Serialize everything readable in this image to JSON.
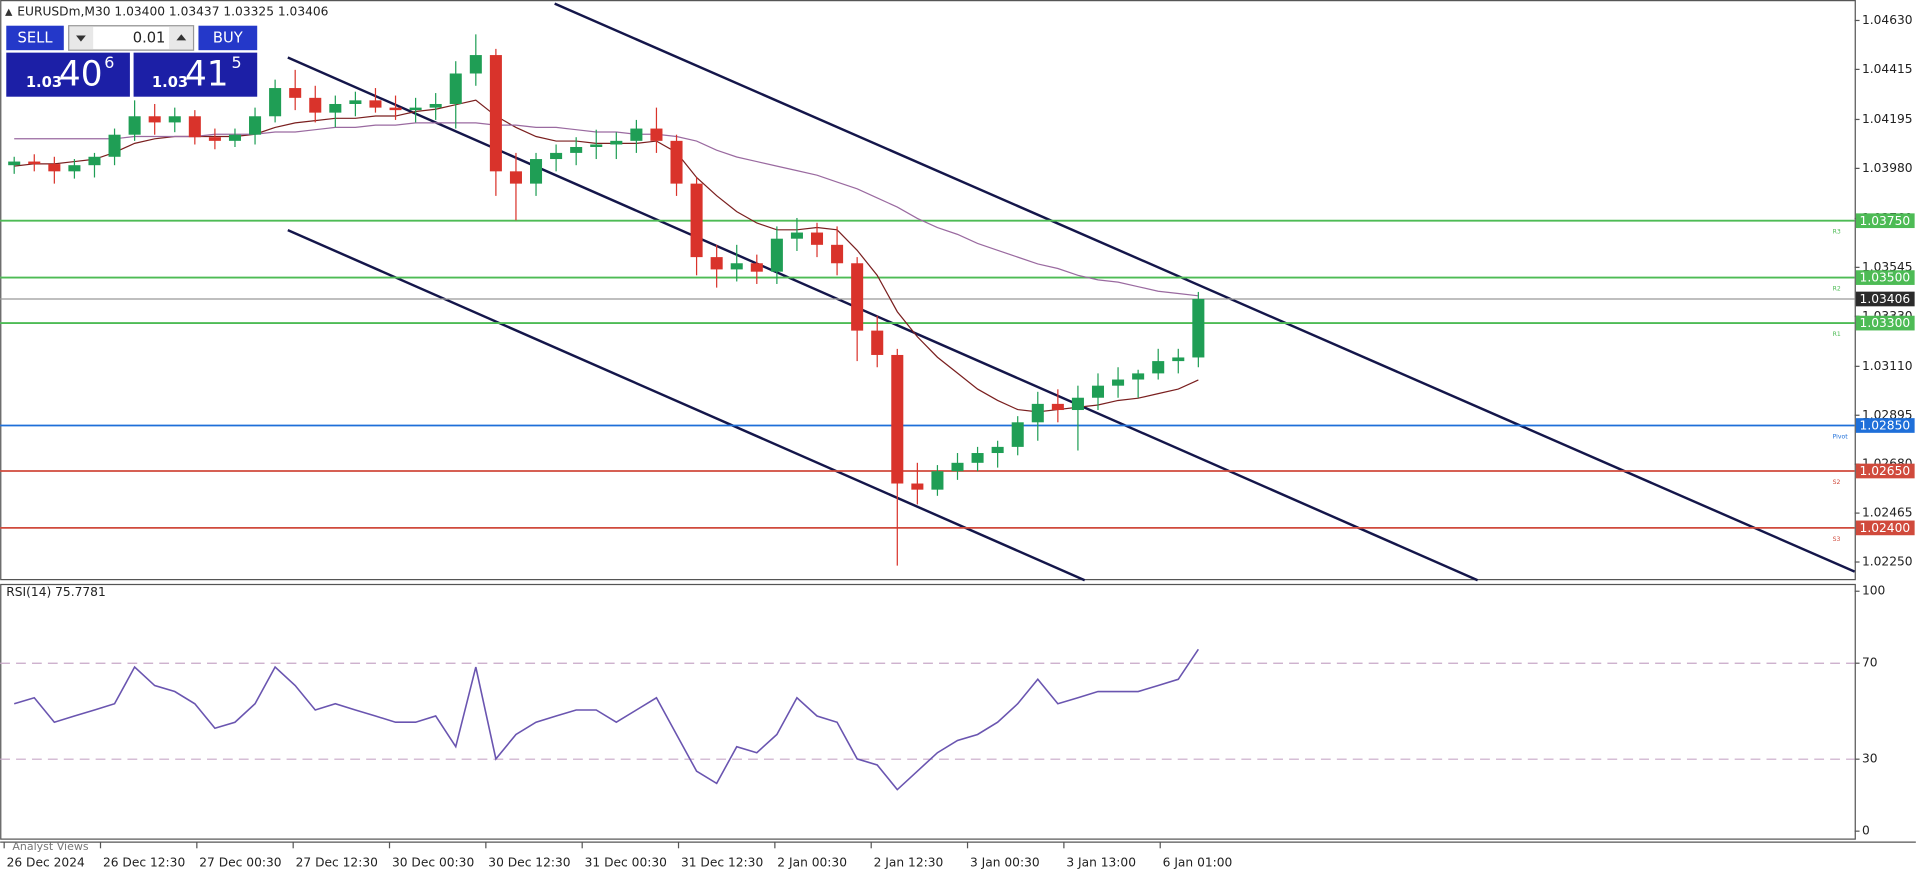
{
  "chart_data": [
    {
      "type": "candlestick",
      "header": "EURUSDm,M30 1.03400 1.03437 1.03325 1.03406",
      "xlim": [
        -1,
        461
      ],
      "ylim": [
        1.0217,
        1.0472
      ],
      "bar_span": 5,
      "xticks": [
        {
          "value": 0,
          "label": "26 Dec 2024"
        },
        {
          "value": 24,
          "label": "26 Dec 12:30"
        },
        {
          "value": 48,
          "label": "27 Dec 00:30"
        },
        {
          "value": 72,
          "label": "27 Dec 12:30"
        },
        {
          "value": 96,
          "label": "30 Dec 00:30"
        },
        {
          "value": 120,
          "label": "30 Dec 12:30"
        },
        {
          "value": 144,
          "label": "31 Dec 00:30"
        },
        {
          "value": 168,
          "label": "31 Dec 12:30"
        },
        {
          "value": 192,
          "label": "2 Jan 00:30"
        },
        {
          "value": 216,
          "label": "2 Jan 12:30"
        },
        {
          "value": 240,
          "label": "3 Jan 00:30"
        },
        {
          "value": 264,
          "label": "3 Jan 13:00"
        },
        {
          "value": 288,
          "label": "6 Jan 01:00"
        }
      ],
      "yticks": [
        {
          "value": 1.0463,
          "label": "1.04630"
        },
        {
          "value": 1.04415,
          "label": "1.04415"
        },
        {
          "value": 1.04195,
          "label": "1.04195"
        },
        {
          "value": 1.0398,
          "label": "1.03980"
        },
        {
          "value": 1.0376,
          "label": "1.03760"
        },
        {
          "value": 1.03545,
          "label": "1.03545"
        },
        {
          "value": 1.0333,
          "label": "1.03330"
        },
        {
          "value": 1.0311,
          "label": "1.03110"
        },
        {
          "value": 1.02895,
          "label": "1.02895"
        },
        {
          "value": 1.0268,
          "label": "1.02680"
        },
        {
          "value": 1.02465,
          "label": "1.02465"
        },
        {
          "value": 1.0225,
          "label": "1.02250"
        }
      ],
      "up_color": "#1f9e55",
      "down_color": "#d9332b",
      "candles": {
        "x": [
          0,
          5,
          10,
          15,
          20,
          25,
          30,
          35,
          40,
          45,
          50,
          55,
          60,
          65,
          70,
          75,
          80,
          85,
          90,
          95,
          100,
          105,
          110,
          115,
          120,
          125,
          130,
          135,
          140,
          145,
          150,
          155,
          160,
          165,
          170,
          175,
          180,
          185,
          190,
          195,
          200,
          205,
          210,
          215,
          220,
          225,
          230,
          235,
          240,
          245,
          250,
          255,
          260,
          265,
          270,
          275,
          280,
          285,
          290,
          295
        ],
        "open": [
          1.03994,
          1.0401,
          1.03999,
          1.03967,
          1.03994,
          1.04031,
          1.04128,
          1.04209,
          1.04182,
          1.04209,
          1.04117,
          1.04101,
          1.04128,
          1.04209,
          1.04333,
          1.0429,
          1.04225,
          1.04263,
          1.04279,
          1.04247,
          1.04236,
          1.04247,
          1.04263,
          1.04397,
          1.04478,
          1.03967,
          1.03913,
          1.04021,
          1.04048,
          1.04074,
          1.04085,
          1.04101,
          1.04155,
          1.04101,
          1.03913,
          1.0359,
          1.03536,
          1.03563,
          1.03526,
          1.03671,
          1.03698,
          1.03644,
          1.03563,
          1.03267,
          1.0316,
          1.02595,
          1.02568,
          1.02649,
          1.02686,
          1.02729,
          1.02756,
          1.02864,
          1.02945,
          1.02918,
          1.02972,
          1.03025,
          1.03052,
          1.03079,
          1.03133,
          1.03149
        ],
        "high": [
          1.04031,
          1.04042,
          1.04031,
          1.04021,
          1.04048,
          1.04155,
          1.04279,
          1.04263,
          1.04247,
          1.04236,
          1.04155,
          1.04155,
          1.04247,
          1.0437,
          1.04413,
          1.04343,
          1.043,
          1.04317,
          1.04333,
          1.043,
          1.0429,
          1.04311,
          1.04451,
          1.04569,
          1.04505,
          1.04048,
          1.04048,
          1.04085,
          1.04117,
          1.0415,
          1.04139,
          1.04193,
          1.04247,
          1.04128,
          1.0394,
          1.03644,
          1.03644,
          1.03601,
          1.03725,
          1.03762,
          1.03741,
          1.03725,
          1.0359,
          1.03332,
          1.03187,
          1.02686,
          1.02676,
          1.02729,
          1.02756,
          1.02783,
          1.02891,
          1.02998,
          1.03009,
          1.03025,
          1.03079,
          1.03106,
          1.03095,
          1.03187,
          1.03187,
          1.03437
        ],
        "low": [
          1.03956,
          1.03967,
          1.03913,
          1.03935,
          1.0394,
          1.03994,
          1.04101,
          1.04128,
          1.04139,
          1.04085,
          1.04064,
          1.04074,
          1.04085,
          1.04182,
          1.04236,
          1.04182,
          1.04161,
          1.04209,
          1.04225,
          1.04193,
          1.04182,
          1.04193,
          1.04155,
          1.04343,
          1.03859,
          1.03752,
          1.03859,
          1.03967,
          1.03994,
          1.04021,
          1.04021,
          1.04048,
          1.04048,
          1.03859,
          1.0351,
          1.03456,
          1.03483,
          1.03472,
          1.03472,
          1.03617,
          1.0359,
          1.0351,
          1.03133,
          1.03106,
          1.02234,
          1.02503,
          1.02541,
          1.02611,
          1.02649,
          1.02665,
          1.02719,
          1.02783,
          1.02864,
          1.0274,
          1.02918,
          1.02972,
          1.02972,
          1.03052,
          1.03079,
          1.03106
        ],
        "close": [
          1.0401,
          1.03999,
          1.03967,
          1.03994,
          1.04031,
          1.04128,
          1.04209,
          1.04182,
          1.04209,
          1.04117,
          1.04101,
          1.04128,
          1.04209,
          1.04333,
          1.0429,
          1.04225,
          1.04263,
          1.04279,
          1.04247,
          1.04236,
          1.04247,
          1.04263,
          1.04397,
          1.04478,
          1.03967,
          1.03913,
          1.04021,
          1.04048,
          1.04074,
          1.04085,
          1.04101,
          1.04155,
          1.04101,
          1.03913,
          1.0359,
          1.03536,
          1.03563,
          1.03526,
          1.03671,
          1.03698,
          1.03644,
          1.03563,
          1.03267,
          1.0316,
          1.02595,
          1.02568,
          1.02649,
          1.02686,
          1.02729,
          1.02756,
          1.02864,
          1.02945,
          1.02918,
          1.02972,
          1.03025,
          1.03052,
          1.03079,
          1.03133,
          1.03149,
          1.03406
        ]
      },
      "moving_averages": [
        {
          "color": "#7a1f1f",
          "values": [
            1.0399,
            1.04,
            1.04,
            1.0401,
            1.0402,
            1.0405,
            1.0409,
            1.0411,
            1.0412,
            1.0412,
            1.0412,
            1.0412,
            1.0413,
            1.0416,
            1.0418,
            1.0419,
            1.042,
            1.042,
            1.0421,
            1.0421,
            1.0423,
            1.0424,
            1.0426,
            1.0428,
            1.0421,
            1.0416,
            1.0412,
            1.041,
            1.041,
            1.0409,
            1.0409,
            1.0409,
            1.041,
            1.0405,
            1.0394,
            1.0386,
            1.0379,
            1.0374,
            1.0371,
            1.0371,
            1.0372,
            1.0371,
            1.0362,
            1.0351,
            1.0335,
            1.0324,
            1.0315,
            1.0308,
            1.0301,
            1.0296,
            1.0292,
            1.0291,
            1.0292,
            1.0293,
            1.0294,
            1.0296,
            1.0297,
            1.0299,
            1.0301,
            1.0305
          ]
        },
        {
          "color": "#9a6aa0",
          "values": [
            1.0411,
            1.0411,
            1.0411,
            1.0411,
            1.0411,
            1.0411,
            1.0412,
            1.0412,
            1.0412,
            1.0412,
            1.0413,
            1.0413,
            1.0413,
            1.0414,
            1.0414,
            1.0415,
            1.0416,
            1.0416,
            1.0417,
            1.0417,
            1.0418,
            1.0418,
            1.0418,
            1.0418,
            1.0417,
            1.0417,
            1.0416,
            1.0416,
            1.0415,
            1.0414,
            1.0414,
            1.0413,
            1.0413,
            1.0412,
            1.041,
            1.0406,
            1.0403,
            1.0401,
            1.0399,
            1.0397,
            1.0395,
            1.0392,
            1.0389,
            1.0385,
            1.0381,
            1.0376,
            1.0372,
            1.0369,
            1.0365,
            1.0362,
            1.0359,
            1.0356,
            1.0354,
            1.0351,
            1.0349,
            1.0348,
            1.0346,
            1.0344,
            1.0343,
            1.0342
          ]
        }
      ],
      "levels": [
        {
          "value": 1.0375,
          "label": "1.03750",
          "tag": "R3",
          "color": "#4dbb55"
        },
        {
          "value": 1.035,
          "label": "1.03500",
          "tag": "R2",
          "color": "#4dbb55"
        },
        {
          "value": 1.033,
          "label": "1.03300",
          "tag": "R1",
          "color": "#4dbb55"
        },
        {
          "value": 1.0285,
          "label": "1.02850",
          "tag": "Pivot",
          "color": "#1e6fd9"
        },
        {
          "value": 1.0265,
          "label": "1.02650",
          "tag": "S2",
          "color": "#d04a3c"
        },
        {
          "value": 1.024,
          "label": "1.02400",
          "tag": "S3",
          "color": "#d04a3c"
        }
      ],
      "current_price": {
        "value": 1.03406,
        "label": "1.03406"
      }
    },
    {
      "type": "line",
      "title": "RSI(14) 75.7781",
      "color": "#6a55b0",
      "x": [
        0,
        5,
        10,
        15,
        20,
        25,
        30,
        35,
        40,
        45,
        50,
        55,
        60,
        65,
        70,
        75,
        80,
        85,
        90,
        95,
        100,
        105,
        110,
        115,
        120,
        125,
        130,
        135,
        140,
        145,
        150,
        155,
        160,
        165,
        170,
        175,
        180,
        185,
        190,
        195,
        200,
        205,
        210,
        215,
        220,
        225,
        230,
        235,
        240,
        245,
        250,
        255,
        260,
        265,
        270,
        275,
        280,
        285,
        290,
        295
      ],
      "values": [
        53.1,
        55.6,
        45.4,
        48,
        50.5,
        53.1,
        68.4,
        60.7,
        58.2,
        53.1,
        42.9,
        45.4,
        53.1,
        68.4,
        60.7,
        50.5,
        53.1,
        50.5,
        48,
        45.4,
        45.4,
        48,
        35.2,
        68.4,
        30.1,
        40.3,
        45.4,
        48,
        50.5,
        50.5,
        45.4,
        50.5,
        55.6,
        40.3,
        25,
        19.9,
        35.2,
        32.7,
        40.3,
        55.6,
        48,
        45.4,
        30.1,
        27.6,
        17.3,
        25,
        32.7,
        37.8,
        40.3,
        45.4,
        53.1,
        63.3,
        53.1,
        55.6,
        58.2,
        58.2,
        58.2,
        60.7,
        63.3,
        75.7781
      ],
      "ylim": [
        0,
        100
      ],
      "yticks": [
        100,
        70,
        30,
        0
      ],
      "levels": [
        70,
        30
      ]
    }
  ],
  "ui": {
    "sell": "SELL",
    "buy": "BUY",
    "lot": "0.01",
    "sell_price": {
      "big": "1.03",
      "main": "40",
      "sup": "6"
    },
    "buy_price": {
      "big": "1.03",
      "main": "41",
      "sup": "5"
    },
    "footer_tab": "Analyst Views"
  }
}
